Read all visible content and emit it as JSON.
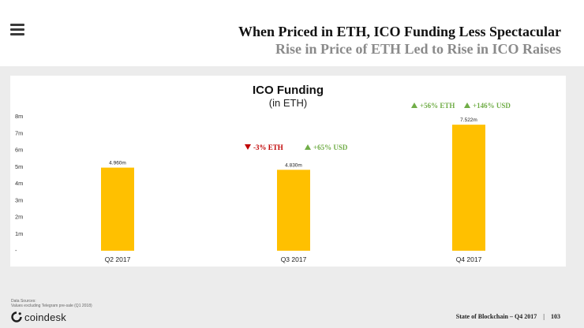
{
  "header": {
    "title": "When Priced in ETH, ICO Funding Less Spectacular",
    "subtitle": "Rise in Price of ETH Led to Rise in ICO Raises"
  },
  "footer": {
    "sources_label": "Data Sources:",
    "sources_text": "Values excluding Telegram pre-sale (Q1 2018)",
    "brand": "coindesk",
    "report": "State of Blockchain – Q4 2017",
    "page": "103"
  },
  "chart_data": {
    "type": "bar",
    "title": "ICO Funding",
    "subtitle": "(in ETH)",
    "categories": [
      "Q2 2017",
      "Q3 2017",
      "Q4 2017"
    ],
    "values": [
      4.96,
      4.83,
      7.522
    ],
    "value_labels": [
      "4.960m",
      "4.830m",
      "7.522m"
    ],
    "ylim": [
      0,
      8
    ],
    "yticks": [
      "-",
      "1m",
      "2m",
      "3m",
      "4m",
      "5m",
      "6m",
      "7m",
      "8m"
    ],
    "bar_color": "#FFC000",
    "grid": false,
    "annotations": [
      {
        "category": "Q3 2017",
        "items": [
          {
            "direction": "down",
            "text": "-3% ETH",
            "color": "#C00000"
          },
          {
            "direction": "up",
            "text": "+65% USD",
            "color": "#70AD47"
          }
        ]
      },
      {
        "category": "Q4 2017",
        "items": [
          {
            "direction": "up",
            "text": "+56% ETH",
            "color": "#70AD47"
          },
          {
            "direction": "up",
            "text": "+146% USD",
            "color": "#70AD47"
          }
        ]
      }
    ]
  }
}
